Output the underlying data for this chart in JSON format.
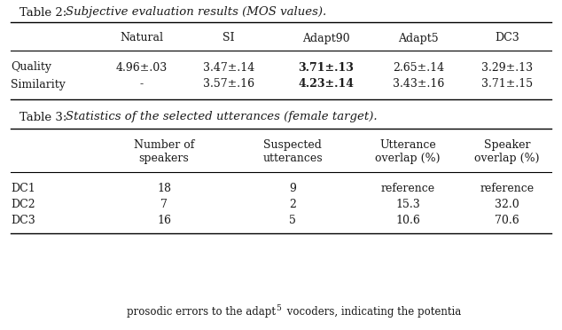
{
  "table2_title_normal": "Table 2: ",
  "table2_title_italic": "Subjective evaluation results (MOS values).",
  "table2_col_headers": [
    "Natural",
    "SI",
    "Adapt90",
    "Adapt5",
    "DC3"
  ],
  "table2_row_headers": [
    "Quality",
    "Similarity"
  ],
  "table2_data": [
    [
      "4.96±.03",
      "3.47±.14",
      "3.71±.13",
      "2.65±.14",
      "3.29±.13"
    ],
    [
      "-",
      "3.57±.16",
      "4.23±.14",
      "3.43±.16",
      "3.71±.15"
    ]
  ],
  "table2_bold_cells": [
    [
      0,
      2
    ],
    [
      1,
      2
    ]
  ],
  "table3_title_normal": "Table 3: ",
  "table3_title_italic": "Statistics of the selected utterances (female target).",
  "table3_col_headers": [
    "Number of\nspeakers",
    "Suspected\nutterances",
    "Utterance\noverlap (%)",
    "Speaker\noverlap (%)"
  ],
  "table3_row_headers": [
    "DC1",
    "DC2",
    "DC3"
  ],
  "table3_data": [
    [
      "18",
      "9",
      "reference",
      "reference"
    ],
    [
      "7",
      "2",
      "15.3",
      "32.0"
    ],
    [
      "16",
      "5",
      "10.6",
      "70.6"
    ]
  ],
  "bottom_text_normal": "prosodic errors to the adapt",
  "bottom_text_super": "5",
  "bottom_text_end": " vocoders, indicating the potentia",
  "bg_color": "#ffffff",
  "text_color": "#1a1a1a",
  "line_color": "#000000",
  "font_size": 9.0,
  "title_font_size": 9.5
}
